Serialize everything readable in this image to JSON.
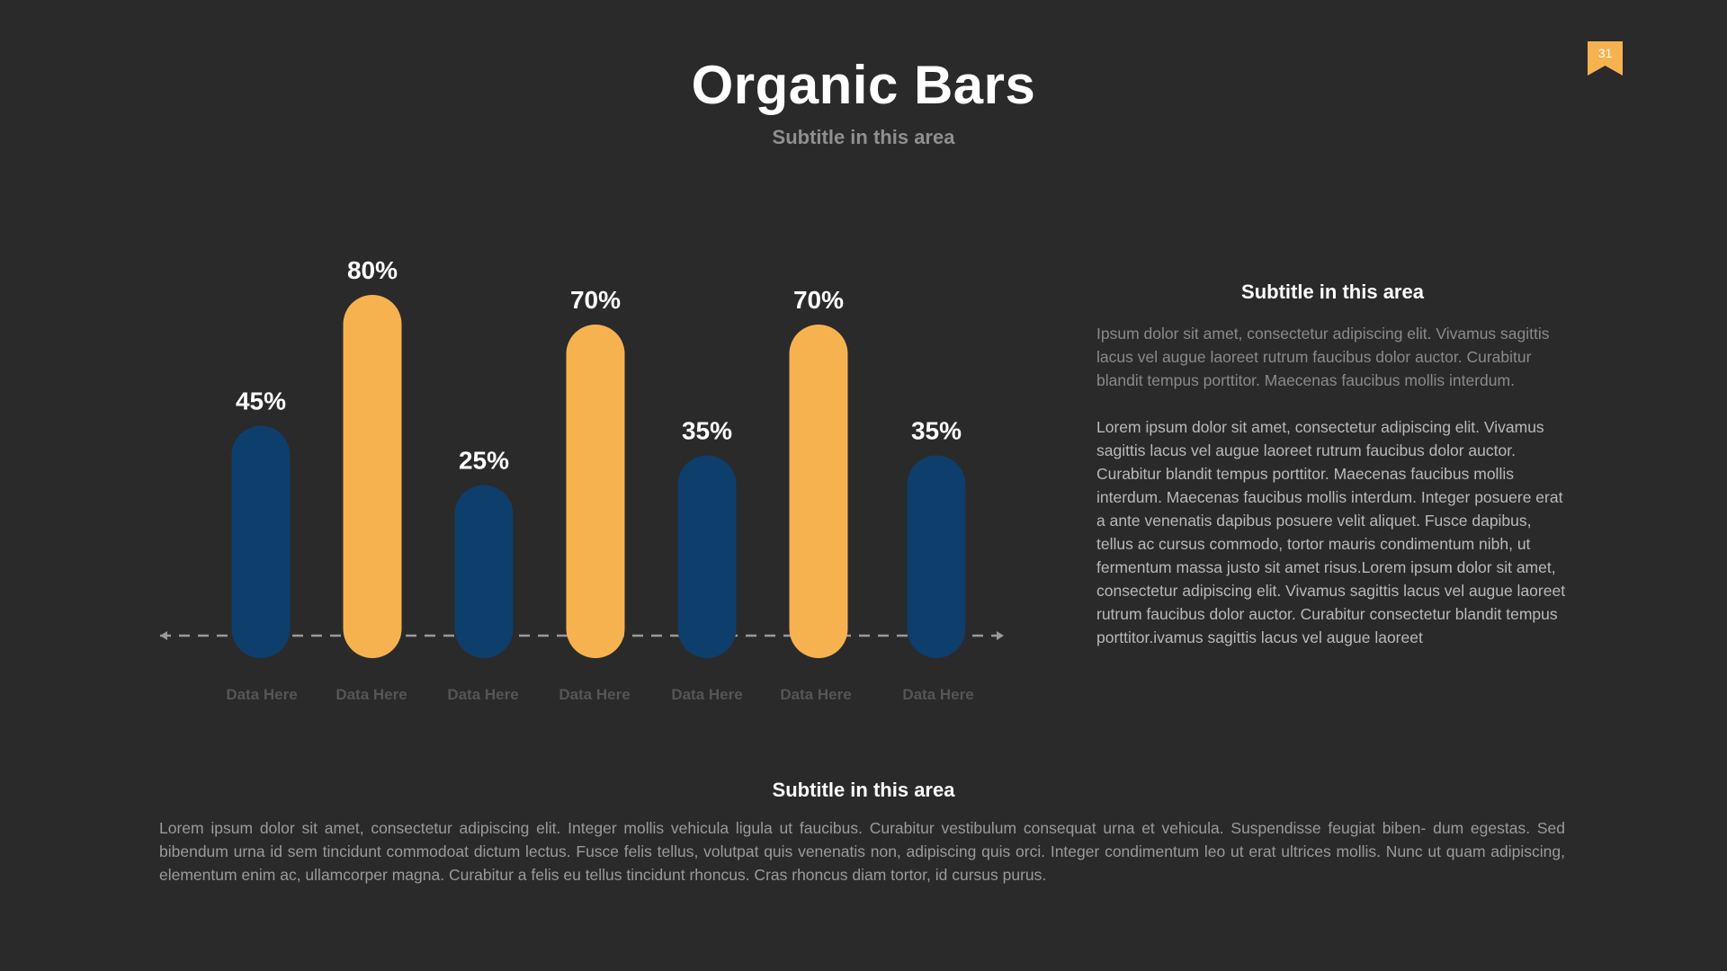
{
  "page_number": "31",
  "title": "Organic Bars",
  "subtitle": "Subtitle in this area",
  "colors": {
    "background": "#2a2a2a",
    "accent_orange": "#f7b250",
    "accent_blue": "#0e3e6b",
    "label_gray": "#555555"
  },
  "chart_data": {
    "type": "bar",
    "categories": [
      "Data Here",
      "Data Here",
      "Data Here",
      "Data Here",
      "Data Here",
      "Data Here",
      "Data Here"
    ],
    "values": [
      45,
      80,
      25,
      70,
      35,
      70,
      35
    ],
    "value_labels": [
      "45%",
      "80%",
      "25%",
      "70%",
      "35%",
      "70%",
      "35%"
    ],
    "bar_colors": [
      "#0e3e6b",
      "#f7b250",
      "#0e3e6b",
      "#f7b250",
      "#0e3e6b",
      "#f7b250",
      "#0e3e6b"
    ],
    "ylim": [
      0,
      100
    ],
    "title": "",
    "xlabel": "",
    "ylabel": "",
    "grid": false
  },
  "side": {
    "heading": "Subtitle in this area",
    "para1": "Ipsum dolor sit amet, consectetur adipiscing elit. Vivamus sagittis lacus vel augue laoreet rutrum faucibus dolor auctor. Curabitur blandit tempus porttitor. Maecenas faucibus mollis interdum.",
    "para2": "Lorem ipsum dolor sit amet, consectetur adipiscing elit. Vivamus sagittis lacus vel augue laoreet rutrum faucibus dolor auctor. Curabitur blandit tempus porttitor. Maecenas faucibus mollis interdum. Maecenas faucibus mollis interdum. Integer posuere erat a ante venenatis dapibus posuere velit aliquet. Fusce dapibus, tellus ac cursus commodo, tortor mauris condimentum nibh, ut fermentum massa justo sit amet risus.Lorem ipsum dolor sit amet, consectetur adipiscing elit. Vivamus sagittis lacus vel augue laoreet rutrum faucibus dolor auctor. Curabitur consectetur blandit tempus porttitor.ivamus sagittis lacus vel augue laoreet"
  },
  "bottom": {
    "heading": "Subtitle in this area",
    "text": "Lorem ipsum dolor sit amet, consectetur adipiscing elit. Integer mollis vehicula ligula ut faucibus. Curabitur vestibulum consequat urna et vehicula. Suspendisse feugiat biben- dum egestas. Sed bibendum urna id sem tincidunt commodoat dictum lectus. Fusce felis tellus, volutpat quis venenatis non, adipiscing quis orci. Integer condimentum leo ut erat ultrices mollis. Nunc ut quam adipiscing, elementum enim ac, ullamcorper magna. Curabitur a felis eu tellus tincidunt rhoncus. Cras rhoncus diam tortor, id cursus purus."
  }
}
